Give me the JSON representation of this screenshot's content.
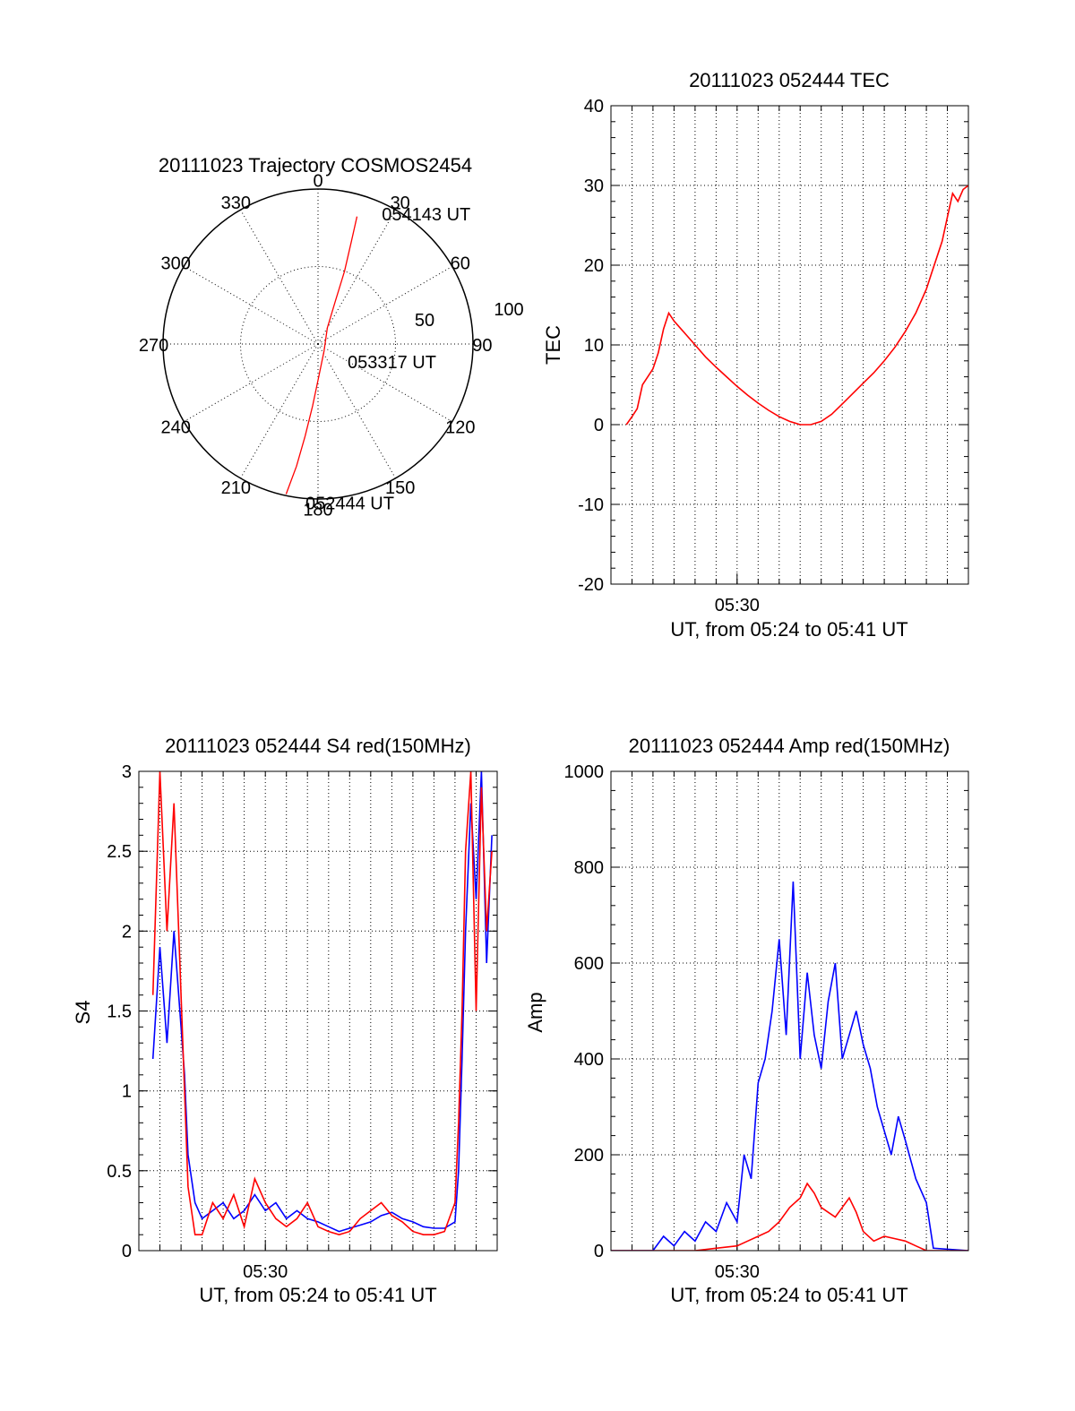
{
  "chart_data": [
    {
      "type": "polar",
      "title": "20111023 Trajectory COSMOS2454",
      "angle_labels": [
        "0",
        "30",
        "60",
        "90",
        "120",
        "150",
        "180",
        "210",
        "240",
        "270",
        "300",
        "330"
      ],
      "radial_labels": [
        "50",
        "100"
      ],
      "rlim": [
        0,
        100
      ],
      "grid": true,
      "series": [
        {
          "color": "#ff0000",
          "points": [
            {
              "az": 192,
              "r": 99
            },
            {
              "az": 190,
              "r": 80
            },
            {
              "az": 188,
              "r": 60
            },
            {
              "az": 185,
              "r": 40
            },
            {
              "az": 178,
              "r": 20
            },
            {
              "az": 140,
              "r": 6
            },
            {
              "az": 30,
              "r": 12
            },
            {
              "az": 22,
              "r": 30
            },
            {
              "az": 20,
              "r": 50
            },
            {
              "az": 18,
              "r": 70
            },
            {
              "az": 17,
              "r": 86
            }
          ]
        }
      ],
      "annotations": [
        {
          "text": "054143 UT",
          "az": 26,
          "r": 94
        },
        {
          "text": "053317 UT",
          "az": 120,
          "r": 22
        },
        {
          "text": "052444 UT",
          "az": 180,
          "r": 102
        }
      ]
    },
    {
      "type": "line",
      "title": "20111023 052444 TEC",
      "xlabel": "UT, from 05:24 to 05:41 UT",
      "ylabel": "TEC",
      "xlim": [
        "05:24:00",
        "05:41:00"
      ],
      "ylim": [
        -20,
        40
      ],
      "yticks": [
        "-20",
        "-10",
        "0",
        "10",
        "20",
        "30",
        "40"
      ],
      "xticks": [
        {
          "t": "05:30:00",
          "label": "05:30"
        }
      ],
      "grid": true,
      "series": [
        {
          "color": "#ff0000",
          "x": [
            "05:24:44",
            "05:25:00",
            "05:25:15",
            "05:25:30",
            "05:25:45",
            "05:26:00",
            "05:26:15",
            "05:26:30",
            "05:26:45",
            "05:27:00",
            "05:27:20",
            "05:27:40",
            "05:28:00",
            "05:28:30",
            "05:29:00",
            "05:29:30",
            "05:30:00",
            "05:30:30",
            "05:31:00",
            "05:31:30",
            "05:32:00",
            "05:32:30",
            "05:33:00",
            "05:33:30",
            "05:34:00",
            "05:34:30",
            "05:35:00",
            "05:35:30",
            "05:36:00",
            "05:36:30",
            "05:37:00",
            "05:37:30",
            "05:38:00",
            "05:38:30",
            "05:39:00",
            "05:39:15",
            "05:39:30",
            "05:39:45",
            "05:40:00",
            "05:40:15",
            "05:40:30",
            "05:40:45",
            "05:41:00"
          ],
          "y": [
            0,
            1,
            2,
            5,
            6,
            7,
            9,
            12,
            14,
            13,
            12,
            11,
            10,
            8.5,
            7.2,
            6,
            4.8,
            3.7,
            2.7,
            1.8,
            1,
            0.4,
            0,
            0,
            0.4,
            1.3,
            2.6,
            3.9,
            5.2,
            6.5,
            8,
            9.7,
            11.7,
            14,
            17,
            19,
            21,
            23,
            26,
            29,
            28,
            29.5,
            30
          ]
        }
      ]
    },
    {
      "type": "line",
      "title": "20111023 052444 S4 red(150MHz)",
      "xlabel": "UT, from 05:24 to 05:41 UT",
      "ylabel": "S4",
      "xlim": [
        "05:24:00",
        "05:41:00"
      ],
      "ylim": [
        0,
        3
      ],
      "yticks": [
        "0",
        "0.5",
        "1",
        "1.5",
        "2",
        "2.5",
        "3"
      ],
      "xticks": [
        {
          "t": "05:30:00",
          "label": "05:30"
        }
      ],
      "grid": true,
      "series": [
        {
          "color": "#0000ff",
          "x": [
            "05:24:40",
            "05:25:00",
            "05:25:20",
            "05:25:40",
            "05:26:00",
            "05:26:10",
            "05:26:20",
            "05:26:40",
            "05:27:00",
            "05:27:30",
            "05:28:00",
            "05:28:30",
            "05:29:00",
            "05:29:30",
            "05:30:00",
            "05:30:30",
            "05:31:00",
            "05:31:30",
            "05:32:00",
            "05:32:30",
            "05:33:00",
            "05:33:30",
            "05:34:00",
            "05:34:30",
            "05:35:00",
            "05:35:30",
            "05:36:00",
            "05:36:30",
            "05:37:00",
            "05:37:30",
            "05:38:00",
            "05:38:30",
            "05:39:00",
            "05:39:10",
            "05:39:20",
            "05:39:30",
            "05:39:45",
            "05:40:00",
            "05:40:15",
            "05:40:30",
            "05:40:45"
          ],
          "y": [
            1.2,
            1.9,
            1.3,
            2.0,
            1.4,
            1.1,
            0.6,
            0.3,
            0.2,
            0.25,
            0.3,
            0.2,
            0.25,
            0.35,
            0.25,
            0.3,
            0.2,
            0.25,
            0.2,
            0.18,
            0.15,
            0.12,
            0.14,
            0.16,
            0.18,
            0.22,
            0.24,
            0.2,
            0.18,
            0.15,
            0.14,
            0.14,
            0.18,
            0.5,
            1.2,
            2.0,
            2.8,
            2.2,
            3.0,
            1.8,
            2.6
          ]
        },
        {
          "color": "#ff0000",
          "x": [
            "05:24:40",
            "05:25:00",
            "05:25:20",
            "05:25:40",
            "05:26:00",
            "05:26:10",
            "05:26:20",
            "05:26:40",
            "05:27:00",
            "05:27:30",
            "05:28:00",
            "05:28:30",
            "05:29:00",
            "05:29:30",
            "05:30:00",
            "05:30:30",
            "05:31:00",
            "05:31:30",
            "05:32:00",
            "05:32:30",
            "05:33:00",
            "05:33:30",
            "05:34:00",
            "05:34:30",
            "05:35:00",
            "05:35:30",
            "05:36:00",
            "05:36:30",
            "05:37:00",
            "05:37:30",
            "05:38:00",
            "05:38:30",
            "05:39:00",
            "05:39:10",
            "05:39:20",
            "05:39:30",
            "05:39:45",
            "05:40:00",
            "05:40:15",
            "05:40:30",
            "05:40:45"
          ],
          "y": [
            1.6,
            3.0,
            2.0,
            2.8,
            1.6,
            1.0,
            0.4,
            0.1,
            0.1,
            0.3,
            0.2,
            0.35,
            0.15,
            0.45,
            0.3,
            0.2,
            0.15,
            0.2,
            0.3,
            0.15,
            0.12,
            0.1,
            0.12,
            0.2,
            0.25,
            0.3,
            0.22,
            0.18,
            0.12,
            0.1,
            0.1,
            0.12,
            0.3,
            0.8,
            1.5,
            2.5,
            3.0,
            1.5,
            2.9,
            2.0,
            2.5
          ]
        }
      ]
    },
    {
      "type": "line",
      "title": "20111023 052444 Amp red(150MHz)",
      "xlabel": "UT, from 05:24 to 05:41 UT",
      "ylabel": "Amp",
      "xlim": [
        "05:24:00",
        "05:41:00"
      ],
      "ylim": [
        0,
        1000
      ],
      "yticks": [
        "0",
        "200",
        "400",
        "600",
        "800",
        "1000"
      ],
      "xticks": [
        {
          "t": "05:30:00",
          "label": "05:30"
        }
      ],
      "grid": true,
      "series": [
        {
          "color": "#0000ff",
          "x": [
            "05:24:00",
            "05:26:00",
            "05:26:30",
            "05:27:00",
            "05:27:30",
            "05:28:00",
            "05:28:30",
            "05:29:00",
            "05:29:30",
            "05:30:00",
            "05:30:20",
            "05:30:40",
            "05:31:00",
            "05:31:20",
            "05:31:40",
            "05:32:00",
            "05:32:20",
            "05:32:40",
            "05:33:00",
            "05:33:20",
            "05:33:40",
            "05:34:00",
            "05:34:20",
            "05:34:40",
            "05:35:00",
            "05:35:20",
            "05:35:40",
            "05:36:00",
            "05:36:20",
            "05:36:40",
            "05:37:00",
            "05:37:20",
            "05:37:40",
            "05:38:00",
            "05:38:30",
            "05:39:00",
            "05:39:20",
            "05:41:00"
          ],
          "y": [
            0,
            0,
            30,
            10,
            40,
            20,
            60,
            40,
            100,
            60,
            200,
            150,
            350,
            400,
            500,
            650,
            450,
            770,
            400,
            580,
            450,
            380,
            520,
            600,
            400,
            450,
            500,
            430,
            380,
            300,
            250,
            200,
            280,
            230,
            150,
            100,
            5,
            0
          ]
        },
        {
          "color": "#ff0000",
          "x": [
            "05:24:00",
            "05:28:00",
            "05:29:00",
            "05:30:00",
            "05:30:30",
            "05:31:00",
            "05:31:30",
            "05:32:00",
            "05:32:30",
            "05:33:00",
            "05:33:20",
            "05:33:40",
            "05:34:00",
            "05:34:20",
            "05:34:40",
            "05:35:00",
            "05:35:20",
            "05:35:40",
            "05:36:00",
            "05:36:30",
            "05:37:00",
            "05:37:30",
            "05:38:00",
            "05:38:30",
            "05:39:00",
            "05:41:00"
          ],
          "y": [
            0,
            0,
            5,
            10,
            20,
            30,
            40,
            60,
            90,
            110,
            140,
            120,
            90,
            80,
            70,
            90,
            110,
            80,
            40,
            20,
            30,
            25,
            20,
            10,
            0,
            0
          ]
        }
      ]
    }
  ]
}
